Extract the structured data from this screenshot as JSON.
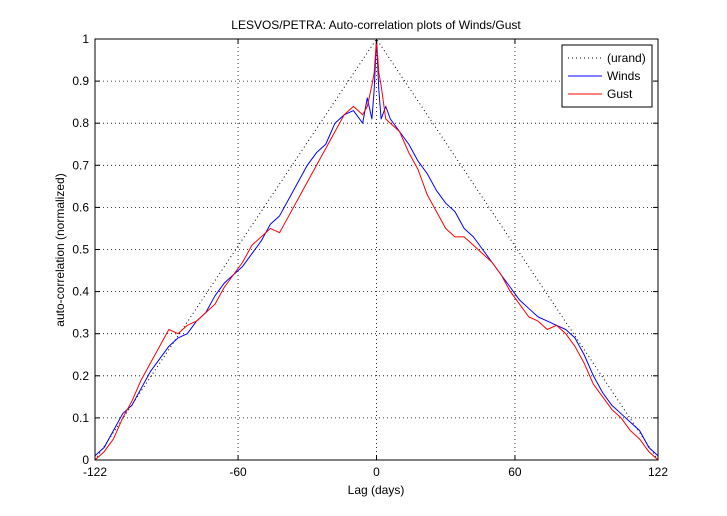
{
  "chart_data": {
    "type": "line",
    "title": "LESVOS/PETRA: Auto-correlation plots of Winds/Gust",
    "xlabel": "Lag (days)",
    "ylabel": "auto-correlation (normalized)",
    "xlim": [
      -122,
      122
    ],
    "ylim": [
      0,
      1
    ],
    "xticks": [
      -122,
      -60,
      0,
      60,
      122
    ],
    "xtick_labels": [
      "-122",
      "-60",
      "0",
      "60",
      "122"
    ],
    "yticks": [
      0,
      0.1,
      0.2,
      0.3,
      0.4,
      0.5,
      0.6,
      0.7,
      0.8,
      0.9,
      1
    ],
    "ytick_labels": [
      "0",
      "0.1",
      "0.2",
      "0.3",
      "0.4",
      "0.5",
      "0.6",
      "0.7",
      "0.8",
      "0.9",
      "1"
    ],
    "grid": true,
    "legend_position": "top-right",
    "series": [
      {
        "name": "(urand)",
        "color": "#000000",
        "style": "dotted",
        "x": [
          -122,
          0,
          122
        ],
        "y": [
          0,
          1,
          0
        ]
      },
      {
        "name": "Winds",
        "color": "#0000ff",
        "style": "solid",
        "x": [
          -122,
          -118,
          -114,
          -110,
          -106,
          -102,
          -98,
          -94,
          -90,
          -86,
          -82,
          -78,
          -74,
          -70,
          -66,
          -62,
          -58,
          -54,
          -50,
          -46,
          -42,
          -38,
          -34,
          -30,
          -26,
          -22,
          -18,
          -14,
          -10,
          -6,
          -4,
          -2,
          -1,
          0,
          1,
          2,
          4,
          6,
          10,
          14,
          18,
          22,
          26,
          30,
          34,
          38,
          42,
          46,
          50,
          54,
          58,
          62,
          66,
          70,
          74,
          78,
          82,
          86,
          90,
          94,
          98,
          102,
          106,
          110,
          114,
          118,
          122
        ],
        "y": [
          0.01,
          0.03,
          0.07,
          0.11,
          0.13,
          0.17,
          0.21,
          0.24,
          0.27,
          0.29,
          0.3,
          0.33,
          0.35,
          0.39,
          0.42,
          0.44,
          0.46,
          0.49,
          0.52,
          0.56,
          0.58,
          0.62,
          0.66,
          0.7,
          0.73,
          0.75,
          0.8,
          0.82,
          0.83,
          0.8,
          0.86,
          0.81,
          0.88,
          1.0,
          0.88,
          0.81,
          0.84,
          0.81,
          0.78,
          0.75,
          0.71,
          0.68,
          0.64,
          0.61,
          0.59,
          0.55,
          0.53,
          0.5,
          0.47,
          0.44,
          0.41,
          0.38,
          0.36,
          0.34,
          0.33,
          0.32,
          0.31,
          0.29,
          0.25,
          0.2,
          0.16,
          0.13,
          0.11,
          0.09,
          0.07,
          0.03,
          0.01
        ]
      },
      {
        "name": "Gust",
        "color": "#ff0000",
        "style": "solid",
        "x": [
          -122,
          -118,
          -114,
          -110,
          -106,
          -102,
          -98,
          -94,
          -90,
          -86,
          -82,
          -78,
          -74,
          -70,
          -66,
          -62,
          -58,
          -54,
          -50,
          -46,
          -42,
          -38,
          -34,
          -30,
          -26,
          -22,
          -18,
          -14,
          -10,
          -6,
          -4,
          -2,
          -1,
          0,
          1,
          2,
          4,
          6,
          10,
          14,
          18,
          22,
          26,
          30,
          34,
          38,
          42,
          46,
          50,
          54,
          58,
          62,
          66,
          70,
          74,
          78,
          82,
          86,
          90,
          94,
          98,
          102,
          106,
          110,
          114,
          118,
          122
        ],
        "y": [
          0.0,
          0.02,
          0.05,
          0.1,
          0.14,
          0.19,
          0.23,
          0.27,
          0.31,
          0.3,
          0.32,
          0.33,
          0.35,
          0.37,
          0.41,
          0.44,
          0.47,
          0.51,
          0.53,
          0.55,
          0.54,
          0.58,
          0.62,
          0.66,
          0.7,
          0.74,
          0.78,
          0.82,
          0.84,
          0.82,
          0.84,
          0.89,
          0.92,
          1.0,
          0.92,
          0.89,
          0.81,
          0.8,
          0.78,
          0.73,
          0.69,
          0.63,
          0.59,
          0.55,
          0.53,
          0.53,
          0.51,
          0.49,
          0.47,
          0.44,
          0.4,
          0.37,
          0.34,
          0.33,
          0.31,
          0.32,
          0.3,
          0.27,
          0.23,
          0.18,
          0.15,
          0.12,
          0.1,
          0.07,
          0.05,
          0.02,
          0.0
        ]
      }
    ]
  }
}
